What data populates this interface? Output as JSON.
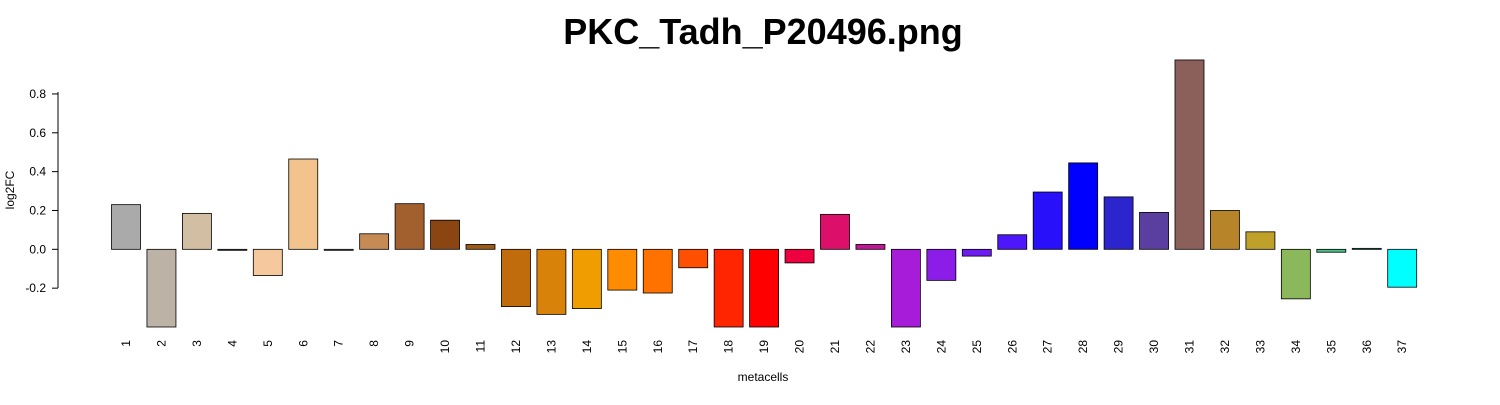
{
  "chart_data": {
    "type": "bar",
    "title": "PKC_Tadh_P20496.png",
    "xlabel": "metacells",
    "ylabel": "log2FC",
    "ylim": [
      -0.4,
      0.98
    ],
    "yticks": [
      -0.2,
      0.0,
      0.2,
      0.4,
      0.6,
      0.8
    ],
    "ytick_labels": [
      "-0.2",
      "0.0",
      "0.2",
      "0.4",
      "0.6",
      "0.8"
    ],
    "grid": false,
    "categories": [
      "1",
      "2",
      "3",
      "4",
      "5",
      "6",
      "7",
      "8",
      "9",
      "10",
      "11",
      "12",
      "13",
      "14",
      "15",
      "16",
      "17",
      "18",
      "19",
      "20",
      "21",
      "22",
      "23",
      "24",
      "25",
      "26",
      "27",
      "28",
      "29",
      "30",
      "31",
      "32",
      "33",
      "34",
      "35",
      "36",
      "37"
    ],
    "values": [
      0.23,
      -0.4,
      0.185,
      -0.005,
      -0.135,
      0.465,
      0.0,
      0.08,
      0.235,
      0.15,
      0.025,
      -0.295,
      -0.335,
      -0.305,
      -0.21,
      -0.225,
      -0.095,
      -0.4,
      -0.4,
      -0.07,
      0.18,
      0.025,
      -0.4,
      -0.16,
      -0.035,
      0.075,
      0.295,
      0.445,
      0.27,
      0.19,
      0.975,
      0.2,
      0.09,
      -0.255,
      -0.015,
      0.005,
      -0.195
    ],
    "colors": [
      "#aaaaaa",
      "#bcb3a6",
      "#d2bfa3",
      "#8a8a6a",
      "#f5c89d",
      "#f2c38c",
      "#b0b0b0",
      "#c68a55",
      "#a2602f",
      "#8b4513",
      "#9c5a14",
      "#c06c0c",
      "#d8820a",
      "#f09d02",
      "#ff8c00",
      "#ff7200",
      "#ff4f00",
      "#ff2500",
      "#ff0000",
      "#ee0040",
      "#dc106a",
      "#c41498",
      "#a61cd8",
      "#8c1de8",
      "#6e1cf0",
      "#4e16fa",
      "#2810fa",
      "#0000ff",
      "#2c24cc",
      "#5a3fa0",
      "#8b5f5a",
      "#b8842a",
      "#bfa028",
      "#8ab85a",
      "#48c087",
      "#20d8c0",
      "#00ffff"
    ]
  }
}
